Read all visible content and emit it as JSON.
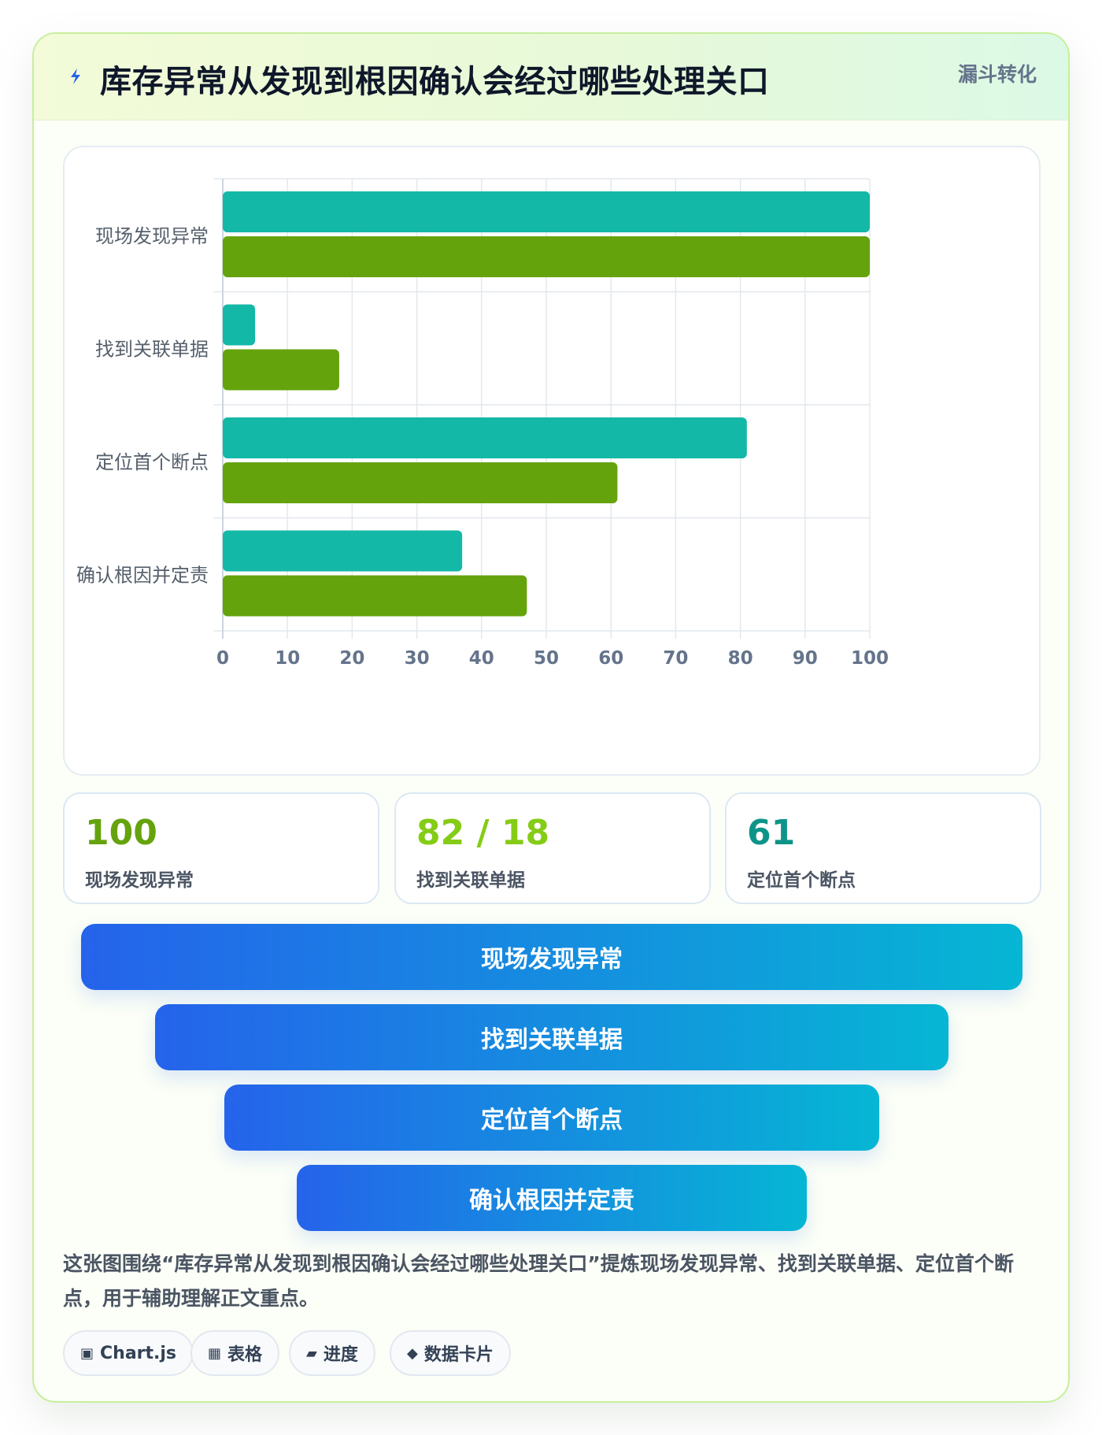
{
  "header": {
    "title": "库存异常从发现到根因确认会经过哪些处理关口",
    "badge": "漏斗转化",
    "icon": "lightning-icon"
  },
  "chart_data": {
    "type": "bar",
    "orientation": "horizontal",
    "categories": [
      "现场发现异常",
      "找到关联单据",
      "定位首个断点",
      "确认根因并定责"
    ],
    "series": [
      {
        "values": [
          100,
          5,
          81,
          37
        ],
        "color": "#14b8a6"
      },
      {
        "values": [
          100,
          18,
          61,
          47
        ],
        "color": "#65a30d"
      }
    ],
    "xlim": [
      0,
      100
    ],
    "xticks": [
      0,
      10,
      20,
      30,
      40,
      50,
      60,
      70,
      80,
      90,
      100
    ],
    "grid": true,
    "legend": "none"
  },
  "stats": [
    {
      "value": "100",
      "label": "现场发现异常",
      "color": "#65a30d"
    },
    {
      "value": "82 / 18",
      "label": "找到关联单据",
      "color": "#84cc16"
    },
    {
      "value": "61",
      "label": "定位首个断点",
      "color": "#0d9488"
    }
  ],
  "funnel": [
    {
      "label": "现场发现异常"
    },
    {
      "label": "找到关联单据"
    },
    {
      "label": "定位首个断点"
    },
    {
      "label": "确认根因并定责"
    }
  ],
  "description": "这张图围绕“库存异常从发现到根因确认会经过哪些处理关口”提炼现场发现异常、找到关联单据、定位首个断点，用于辅助理解正文重点。",
  "chips": [
    {
      "icon": "▣",
      "label": "Chart.js",
      "icon_name": "chart-icon"
    },
    {
      "icon": "▦",
      "label": "表格",
      "icon_name": "table-icon"
    },
    {
      "icon": "▰",
      "label": "进度",
      "icon_name": "progress-icon"
    },
    {
      "icon": "◆",
      "label": "数据卡片",
      "icon_name": "card-icon"
    }
  ]
}
